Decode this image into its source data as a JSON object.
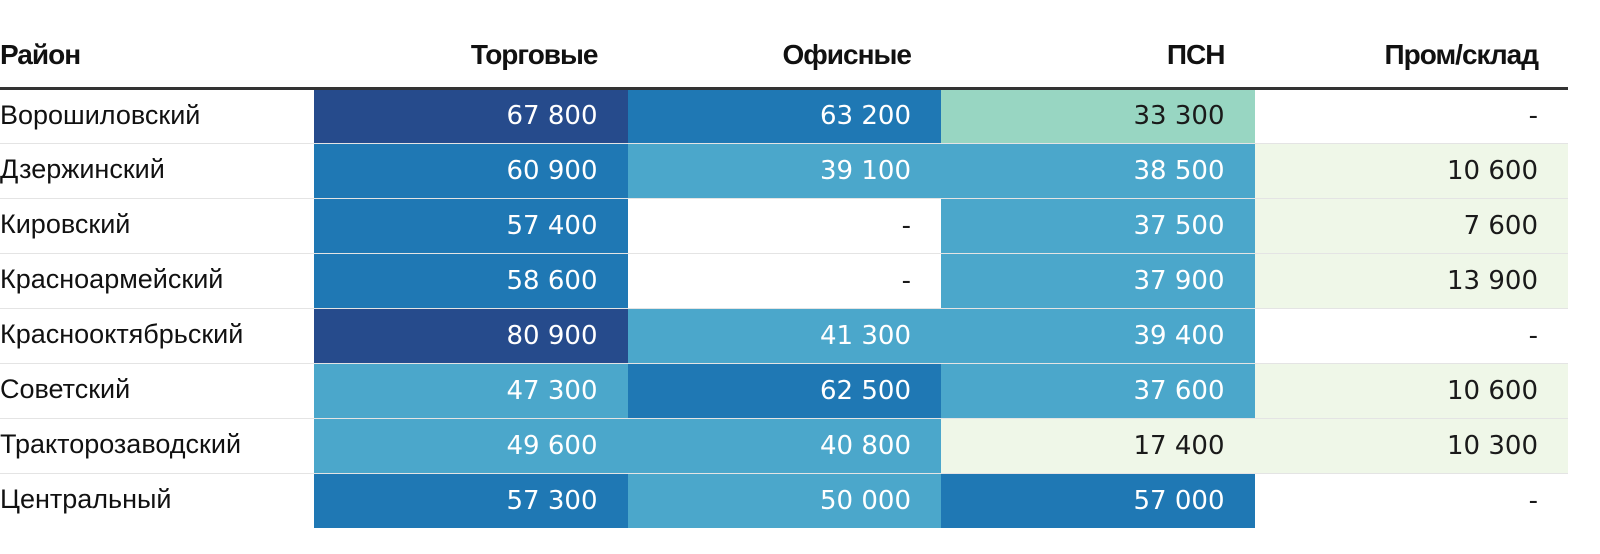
{
  "chart_data": {
    "type": "table",
    "columns": [
      "Район",
      "Торговые",
      "Офисные",
      "ПСН",
      "Пром/склад"
    ],
    "rows": [
      {
        "name": "Ворошиловский",
        "values": [
          "67 800",
          "63 200",
          "33 300",
          "-"
        ],
        "colors": [
          "#264b8c",
          "#1f78b4",
          "#98d6c2",
          "#ffffff"
        ]
      },
      {
        "name": "Дзержинский",
        "values": [
          "60 900",
          "39 100",
          "38 500",
          "10 600"
        ],
        "colors": [
          "#1f78b4",
          "#4ba7cb",
          "#4ba7cb",
          "#eff7e8"
        ]
      },
      {
        "name": "Кировский",
        "values": [
          "57 400",
          "-",
          "37 500",
          "7 600"
        ],
        "colors": [
          "#1f78b4",
          "#ffffff",
          "#4ba7cb",
          "#eff7e8"
        ]
      },
      {
        "name": "Красноармейский",
        "values": [
          "58 600",
          "-",
          "37 900",
          "13 900"
        ],
        "colors": [
          "#1f78b4",
          "#ffffff",
          "#4ba7cb",
          "#eff7e8"
        ]
      },
      {
        "name": "Краснооктябрьский",
        "values": [
          "80 900",
          "41 300",
          "39 400",
          "-"
        ],
        "colors": [
          "#264b8c",
          "#4ba7cb",
          "#4ba7cb",
          "#ffffff"
        ]
      },
      {
        "name": "Советский",
        "values": [
          "47 300",
          "62 500",
          "37 600",
          "10 600"
        ],
        "colors": [
          "#4ba7cb",
          "#1f78b4",
          "#4ba7cb",
          "#eff7e8"
        ]
      },
      {
        "name": "Тракторозаводский",
        "values": [
          "49 600",
          "40 800",
          "17 400",
          "10 300"
        ],
        "colors": [
          "#4ba7cb",
          "#4ba7cb",
          "#eff7e8",
          "#eff7e8"
        ]
      },
      {
        "name": "Центральный",
        "values": [
          "57 300",
          "50 000",
          "57 000",
          "-"
        ],
        "colors": [
          "#1f78b4",
          "#4ba7cb",
          "#1f78b4",
          "#ffffff"
        ]
      }
    ]
  }
}
